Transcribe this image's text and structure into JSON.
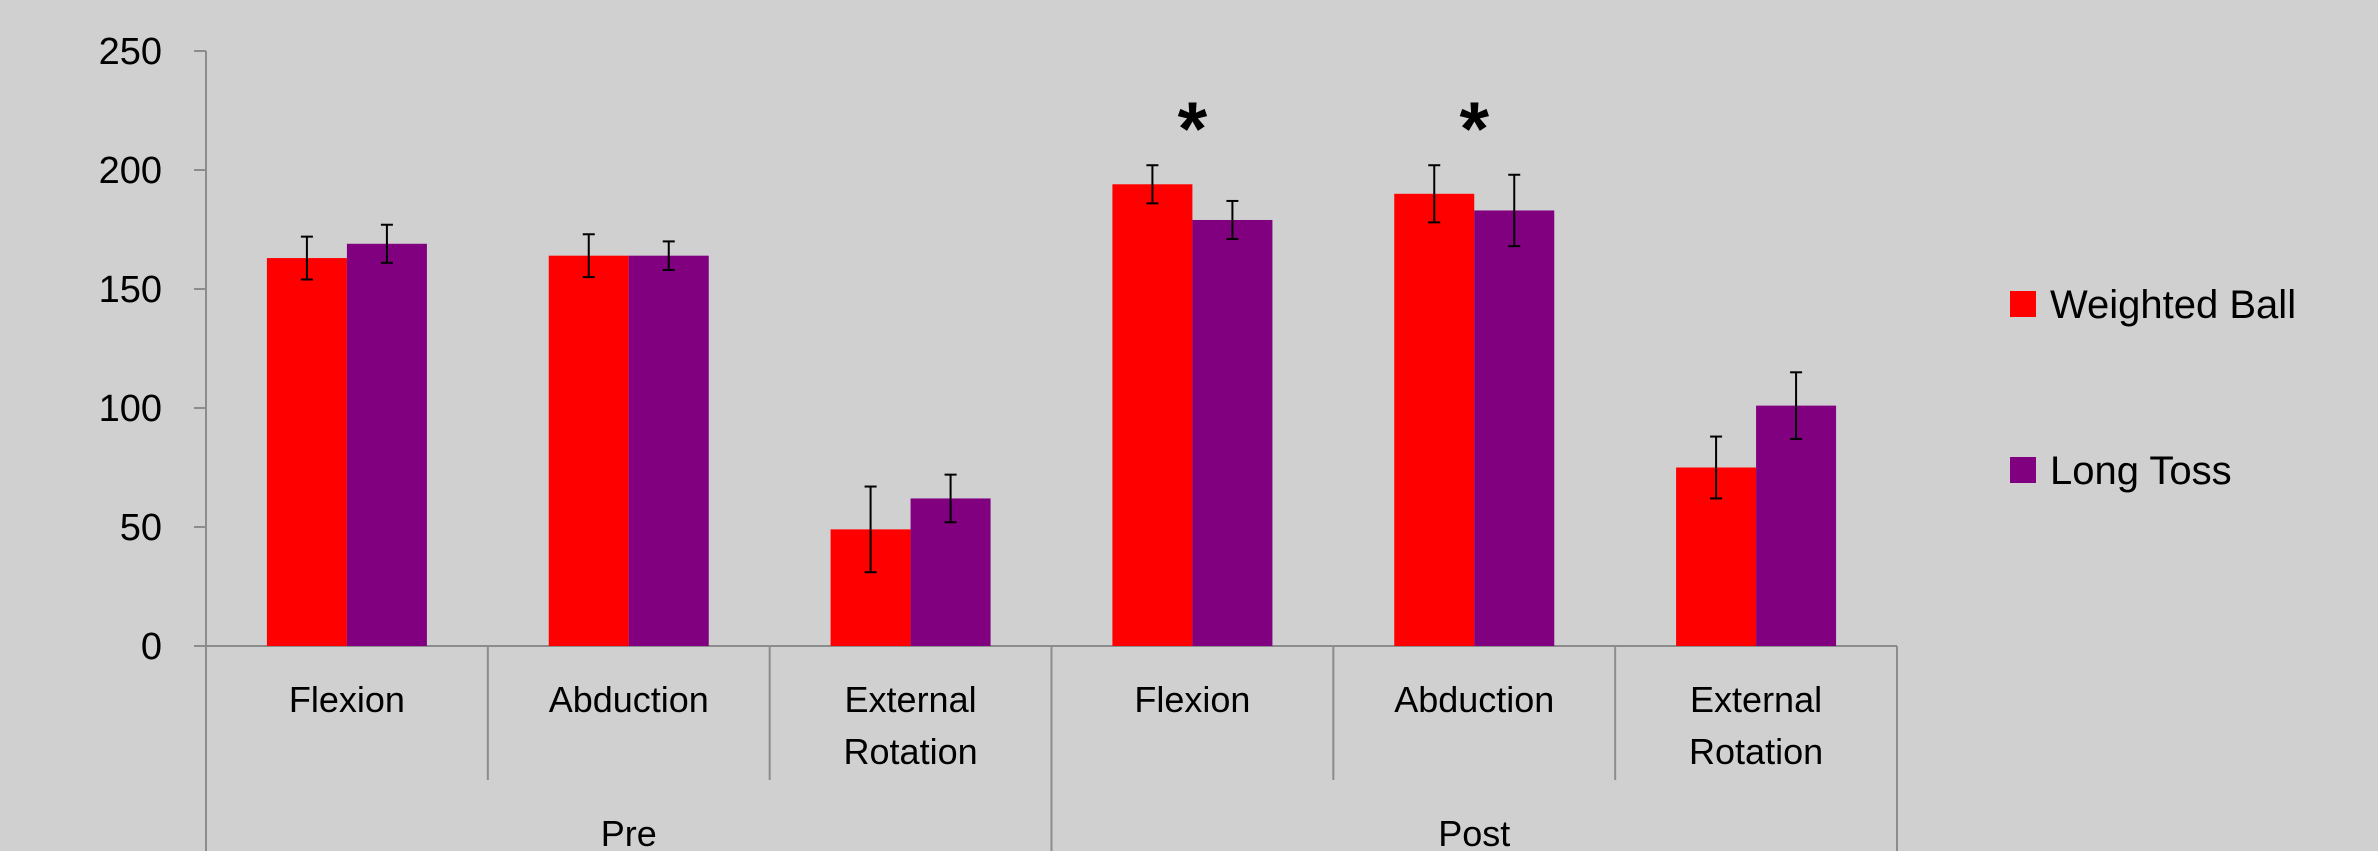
{
  "chart_data": {
    "type": "bar",
    "title": "",
    "xlabel": "",
    "ylabel": "",
    "ylim": [
      0,
      250
    ],
    "yticks": [
      0,
      50,
      100,
      150,
      200,
      250
    ],
    "groups": [
      {
        "label": "Pre",
        "categories": [
          "Flexion",
          "Abduction",
          "External Rotation"
        ]
      },
      {
        "label": "Post",
        "categories": [
          "Flexion",
          "Abduction",
          "External Rotation"
        ]
      }
    ],
    "series": [
      {
        "name": "Weighted Ball",
        "color": "#ff0000",
        "values": [
          163,
          164,
          49,
          194,
          190,
          75
        ],
        "errors": [
          9,
          9,
          18,
          8,
          12,
          13
        ]
      },
      {
        "name": "Long Toss",
        "color": "#800080",
        "values": [
          169,
          164,
          62,
          179,
          183,
          101
        ],
        "errors": [
          8,
          6,
          10,
          8,
          15,
          14
        ]
      }
    ],
    "annotations": [
      {
        "text": "*",
        "category_index": 3
      },
      {
        "text": "*",
        "category_index": 4
      }
    ],
    "legend_position": "right",
    "grid": false,
    "background": "#d0d0d0",
    "axis_color": "#8c8c8c"
  }
}
